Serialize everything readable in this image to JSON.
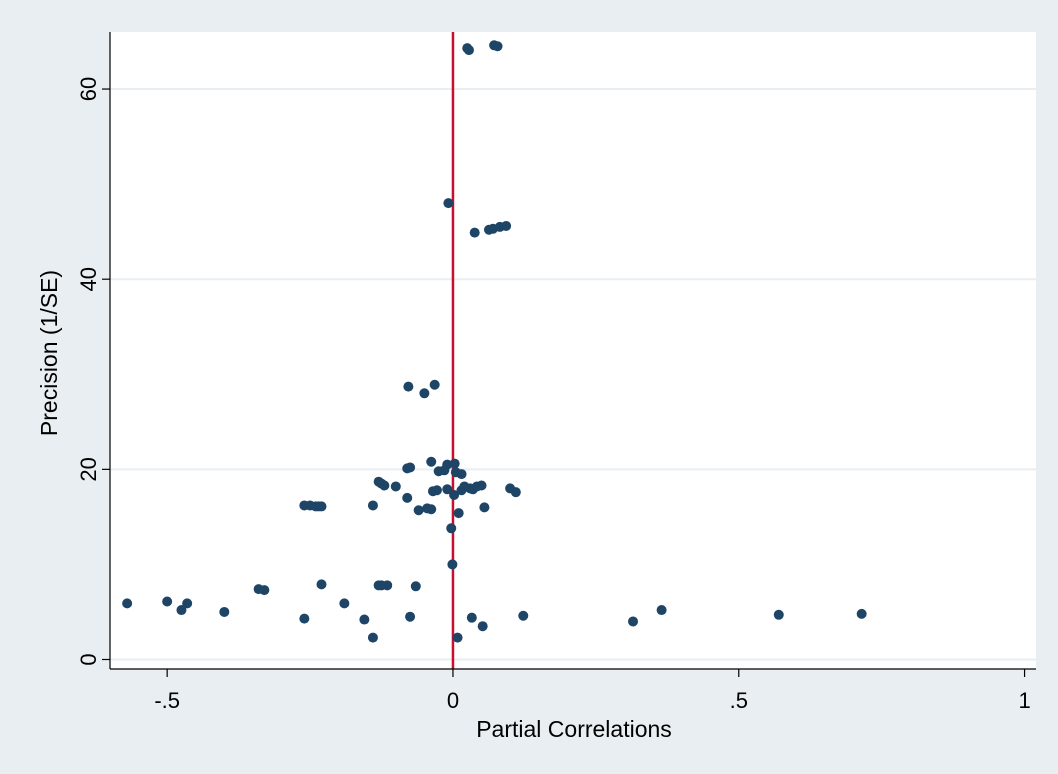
{
  "chart_data": {
    "type": "scatter",
    "title": "",
    "xlabel": "Partial Correlations",
    "ylabel": "Precision (1/SE)",
    "xlim": [
      -0.6,
      1.02
    ],
    "ylim": [
      -1,
      66
    ],
    "x_ticks": [
      -0.5,
      0,
      0.5,
      1
    ],
    "x_tick_labels": [
      "-.5",
      "0",
      ".5",
      "1"
    ],
    "y_ticks": [
      0,
      20,
      40,
      60
    ],
    "y_tick_labels": [
      "0",
      "20",
      "40",
      "60"
    ],
    "grid": "horizontal",
    "reference_line": {
      "axis": "x",
      "value": 0
    },
    "colors": {
      "outer_background": "#e8eef2",
      "plot_background": "#ffffff",
      "marker": "#1f4566",
      "reference_line": "#c8102e",
      "grid": "#e8eef2"
    },
    "points": [
      {
        "x": 0.025,
        "y": 64.3
      },
      {
        "x": 0.028,
        "y": 64.1
      },
      {
        "x": 0.072,
        "y": 64.6
      },
      {
        "x": 0.078,
        "y": 64.5
      },
      {
        "x": -0.008,
        "y": 48.0
      },
      {
        "x": 0.038,
        "y": 44.9
      },
      {
        "x": 0.063,
        "y": 45.2
      },
      {
        "x": 0.07,
        "y": 45.3
      },
      {
        "x": 0.082,
        "y": 45.5
      },
      {
        "x": 0.093,
        "y": 45.6
      },
      {
        "x": -0.078,
        "y": 28.7
      },
      {
        "x": -0.032,
        "y": 28.9
      },
      {
        "x": -0.05,
        "y": 28.0
      },
      {
        "x": -0.038,
        "y": 20.8
      },
      {
        "x": -0.075,
        "y": 20.2
      },
      {
        "x": -0.08,
        "y": 20.1
      },
      {
        "x": -0.01,
        "y": 20.5
      },
      {
        "x": 0.003,
        "y": 20.6
      },
      {
        "x": -0.025,
        "y": 19.8
      },
      {
        "x": -0.015,
        "y": 19.9
      },
      {
        "x": 0.005,
        "y": 19.7
      },
      {
        "x": 0.015,
        "y": 19.5
      },
      {
        "x": -0.13,
        "y": 18.7
      },
      {
        "x": -0.125,
        "y": 18.5
      },
      {
        "x": -0.12,
        "y": 18.3
      },
      {
        "x": -0.1,
        "y": 18.2
      },
      {
        "x": -0.08,
        "y": 17.0
      },
      {
        "x": -0.035,
        "y": 17.7
      },
      {
        "x": -0.028,
        "y": 17.8
      },
      {
        "x": -0.01,
        "y": 17.9
      },
      {
        "x": 0.002,
        "y": 17.3
      },
      {
        "x": 0.015,
        "y": 17.8
      },
      {
        "x": 0.02,
        "y": 18.2
      },
      {
        "x": 0.03,
        "y": 18.0
      },
      {
        "x": 0.035,
        "y": 17.9
      },
      {
        "x": 0.042,
        "y": 18.2
      },
      {
        "x": 0.05,
        "y": 18.3
      },
      {
        "x": 0.1,
        "y": 18.0
      },
      {
        "x": 0.11,
        "y": 17.6
      },
      {
        "x": -0.26,
        "y": 16.2
      },
      {
        "x": -0.25,
        "y": 16.2
      },
      {
        "x": -0.24,
        "y": 16.1
      },
      {
        "x": -0.235,
        "y": 16.1
      },
      {
        "x": -0.23,
        "y": 16.1
      },
      {
        "x": -0.14,
        "y": 16.2
      },
      {
        "x": -0.06,
        "y": 15.7
      },
      {
        "x": -0.045,
        "y": 15.9
      },
      {
        "x": -0.038,
        "y": 15.8
      },
      {
        "x": 0.055,
        "y": 16.0
      },
      {
        "x": 0.01,
        "y": 15.4
      },
      {
        "x": -0.003,
        "y": 13.8
      },
      {
        "x": -0.001,
        "y": 10.0
      },
      {
        "x": -0.23,
        "y": 7.9
      },
      {
        "x": -0.13,
        "y": 7.8
      },
      {
        "x": -0.125,
        "y": 7.8
      },
      {
        "x": -0.115,
        "y": 7.8
      },
      {
        "x": -0.065,
        "y": 7.7
      },
      {
        "x": -0.34,
        "y": 7.4
      },
      {
        "x": -0.33,
        "y": 7.3
      },
      {
        "x": -0.57,
        "y": 5.9
      },
      {
        "x": -0.5,
        "y": 6.1
      },
      {
        "x": -0.465,
        "y": 5.9
      },
      {
        "x": -0.475,
        "y": 5.2
      },
      {
        "x": -0.4,
        "y": 5.0
      },
      {
        "x": -0.19,
        "y": 5.9
      },
      {
        "x": -0.26,
        "y": 4.3
      },
      {
        "x": -0.155,
        "y": 4.2
      },
      {
        "x": -0.075,
        "y": 4.5
      },
      {
        "x": -0.14,
        "y": 2.3
      },
      {
        "x": 0.008,
        "y": 2.3
      },
      {
        "x": 0.033,
        "y": 4.4
      },
      {
        "x": 0.052,
        "y": 3.5
      },
      {
        "x": 0.123,
        "y": 4.6
      },
      {
        "x": 0.315,
        "y": 4.0
      },
      {
        "x": 0.365,
        "y": 5.2
      },
      {
        "x": 0.57,
        "y": 4.7
      },
      {
        "x": 0.715,
        "y": 4.8
      }
    ]
  }
}
